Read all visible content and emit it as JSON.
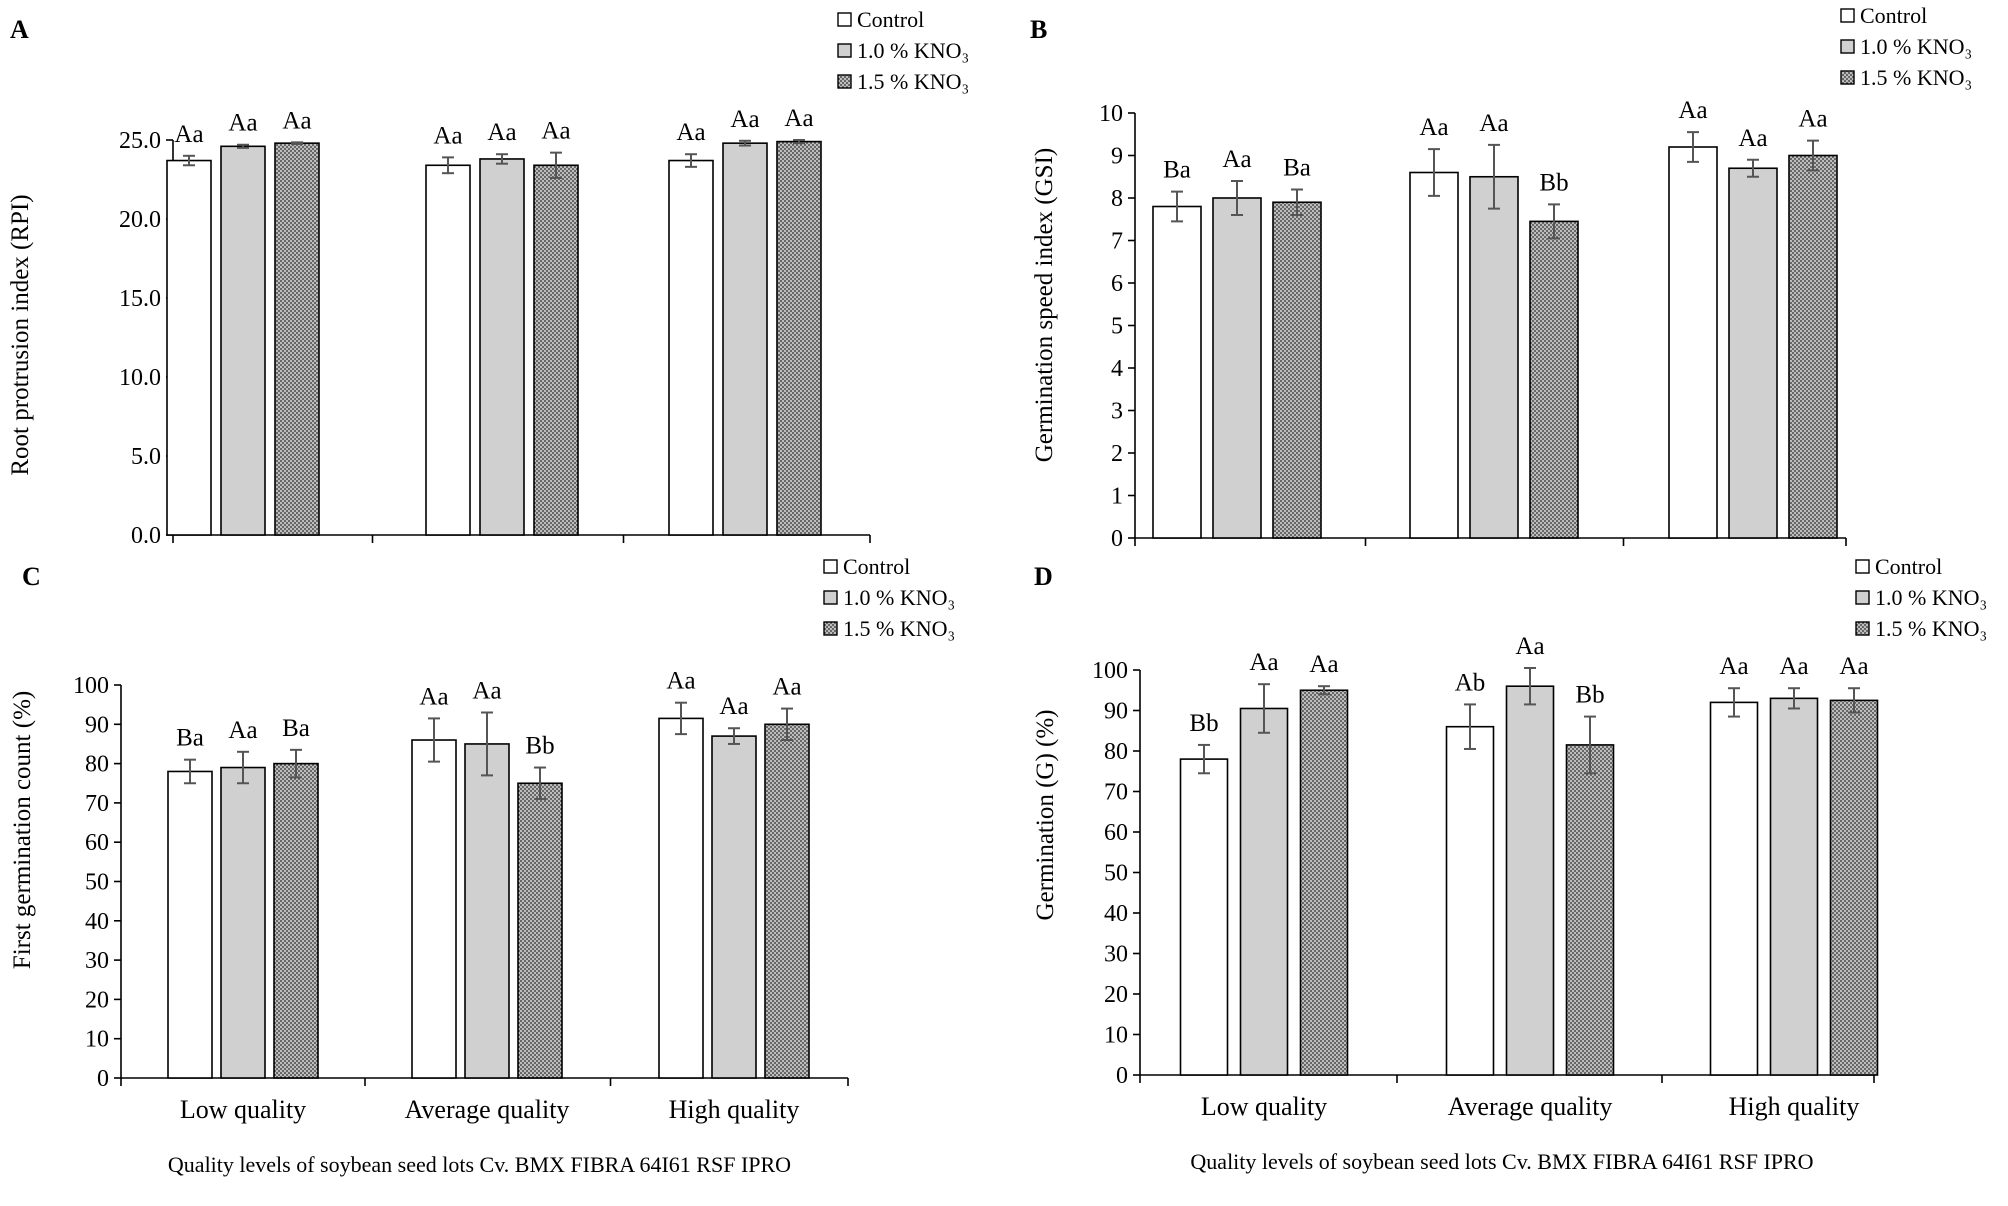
{
  "colors": {
    "control": "#ffffff",
    "kno3_10": "#d0d0d0",
    "kno3_15": "#a6a6a6",
    "error": "#555555"
  },
  "legend": [
    "Control",
    "1.0 % KNO₃",
    "1.5 % KNO₃"
  ],
  "x_title": "Quality levels of soybean seed lots Cv. BMX FIBRA 64I61 RSF IPRO",
  "chart_data": [
    {
      "panel": "A",
      "type": "bar",
      "ylabel": "Root protrusion index (RPI)",
      "ylim": [
        0,
        25
      ],
      "yticks": [
        "0.0",
        "5.0",
        "10.0",
        "15.0",
        "20.0",
        "25.0"
      ],
      "categories": [
        "Low quality",
        "Average quality",
        "High quality"
      ],
      "show_category_labels": false,
      "show_x_title": false,
      "series": [
        {
          "name": "Control",
          "values": [
            23.7,
            23.4,
            23.7
          ],
          "errors": [
            0.3,
            0.5,
            0.4
          ],
          "labels": [
            "Aa",
            "Aa",
            "Aa"
          ]
        },
        {
          "name": "1.0 % KNO₃",
          "values": [
            24.6,
            23.8,
            24.8
          ],
          "errors": [
            0.1,
            0.3,
            0.15
          ],
          "labels": [
            "Aa",
            "Aa",
            "Aa"
          ]
        },
        {
          "name": "1.5 % KNO₃",
          "values": [
            24.8,
            23.4,
            24.9
          ],
          "errors": [
            0.05,
            0.8,
            0.1
          ],
          "labels": [
            "Aa",
            "Aa",
            "Aa"
          ]
        }
      ]
    },
    {
      "panel": "B",
      "type": "bar",
      "ylabel": "Germination speed index (GSI)",
      "ylim": [
        0,
        10
      ],
      "yticks": [
        "0",
        "1",
        "2",
        "3",
        "4",
        "5",
        "6",
        "7",
        "8",
        "9",
        "10"
      ],
      "categories": [
        "Low quality",
        "Average quality",
        "High quality"
      ],
      "show_category_labels": false,
      "show_x_title": false,
      "series": [
        {
          "name": "Control",
          "values": [
            7.8,
            8.6,
            9.2
          ],
          "errors": [
            0.35,
            0.55,
            0.35
          ],
          "labels": [
            "Ba",
            "Aa",
            "Aa"
          ]
        },
        {
          "name": "1.0 % KNO₃",
          "values": [
            8.0,
            8.5,
            8.7
          ],
          "errors": [
            0.4,
            0.75,
            0.2
          ],
          "labels": [
            "Aa",
            "Aa",
            "Aa"
          ]
        },
        {
          "name": "1.5 % KNO₃",
          "values": [
            7.9,
            7.45,
            9.0
          ],
          "errors": [
            0.3,
            0.4,
            0.35
          ],
          "labels": [
            "Ba",
            "Bb",
            "Aa"
          ]
        }
      ]
    },
    {
      "panel": "C",
      "type": "bar",
      "ylabel": "First germination count (%)",
      "ylim": [
        0,
        100
      ],
      "yticks": [
        "0",
        "10",
        "20",
        "30",
        "40",
        "50",
        "60",
        "70",
        "80",
        "90",
        "100"
      ],
      "categories": [
        "Low quality",
        "Average quality",
        "High quality"
      ],
      "show_category_labels": true,
      "show_x_title": true,
      "series": [
        {
          "name": "Control",
          "values": [
            78,
            86,
            91.5
          ],
          "errors": [
            3,
            5.5,
            4
          ],
          "labels": [
            "Ba",
            "Aa",
            "Aa"
          ]
        },
        {
          "name": "1.0 % KNO₃",
          "values": [
            79,
            85,
            87
          ],
          "errors": [
            4,
            8,
            2
          ],
          "labels": [
            "Aa",
            "Aa",
            "Aa"
          ]
        },
        {
          "name": "1.5 % KNO₃",
          "values": [
            80,
            75,
            90
          ],
          "errors": [
            3.5,
            4,
            4
          ],
          "labels": [
            "Ba",
            "Bb",
            "Aa"
          ]
        }
      ]
    },
    {
      "panel": "D",
      "type": "bar",
      "ylabel": "Germination (G) (%)",
      "ylim": [
        0,
        100
      ],
      "yticks": [
        "0",
        "10",
        "20",
        "30",
        "40",
        "50",
        "60",
        "70",
        "80",
        "90",
        "100"
      ],
      "categories": [
        "Low quality",
        "Average quality",
        "High quality"
      ],
      "show_category_labels": true,
      "show_x_title": true,
      "series": [
        {
          "name": "Control",
          "values": [
            78,
            86,
            92
          ],
          "errors": [
            3.5,
            5.5,
            3.5
          ],
          "labels": [
            "Bb",
            "Ab",
            "Aa"
          ]
        },
        {
          "name": "1.0 % KNO₃",
          "values": [
            90.5,
            96,
            93
          ],
          "errors": [
            6,
            4.5,
            2.5
          ],
          "labels": [
            "Aa",
            "Aa",
            "Aa"
          ]
        },
        {
          "name": "1.5 % KNO₃",
          "values": [
            95,
            81.5,
            92.5
          ],
          "errors": [
            1,
            7,
            3
          ],
          "labels": [
            "Aa",
            "Bb",
            "Aa"
          ]
        }
      ]
    }
  ]
}
